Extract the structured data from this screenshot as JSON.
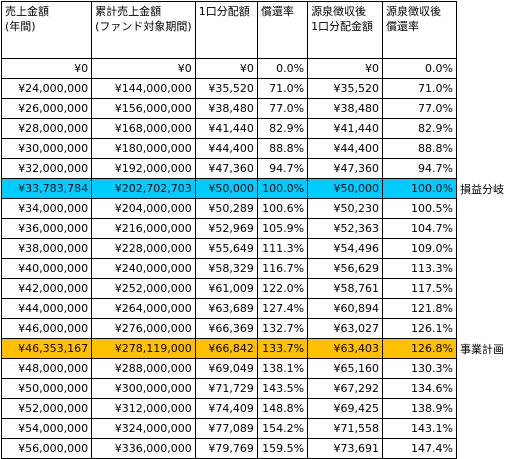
{
  "table": {
    "header": [
      [
        "売上金額",
        "(年間)"
      ],
      [
        "累計売上金額",
        "(ファンド対象期間)"
      ],
      [
        "1口分配額"
      ],
      [
        "償還率"
      ],
      [
        "源泉徴収後",
        "1口分配金額"
      ],
      [
        "源泉徴収後",
        "償還率"
      ]
    ],
    "rows": [
      {
        "cells": [
          "¥0",
          "¥0",
          "¥0",
          "0.0%",
          "¥0",
          "0.0%"
        ]
      },
      {
        "cells": [
          "¥24,000,000",
          "¥144,000,000",
          "¥35,520",
          "71.0%",
          "¥35,520",
          "71.0%"
        ]
      },
      {
        "cells": [
          "¥26,000,000",
          "¥156,000,000",
          "¥38,480",
          "77.0%",
          "¥38,480",
          "77.0%"
        ]
      },
      {
        "cells": [
          "¥28,000,000",
          "¥168,000,000",
          "¥41,440",
          "82.9%",
          "¥41,440",
          "82.9%"
        ]
      },
      {
        "cells": [
          "¥30,000,000",
          "¥180,000,000",
          "¥44,400",
          "88.8%",
          "¥44,400",
          "88.8%"
        ]
      },
      {
        "cells": [
          "¥32,000,000",
          "¥192,000,000",
          "¥47,360",
          "94.7%",
          "¥47,360",
          "94.7%"
        ]
      },
      {
        "cells": [
          "¥33,783,784",
          "¥202,702,703",
          "¥50,000",
          "100.0%",
          "¥50,000",
          "100.0%"
        ],
        "note": "損益分岐",
        "color": "#00ccff"
      },
      {
        "cells": [
          "¥34,000,000",
          "¥204,000,000",
          "¥50,289",
          "100.6%",
          "¥50,230",
          "100.5%"
        ]
      },
      {
        "cells": [
          "¥36,000,000",
          "¥216,000,000",
          "¥52,969",
          "105.9%",
          "¥52,363",
          "104.7%"
        ]
      },
      {
        "cells": [
          "¥38,000,000",
          "¥228,000,000",
          "¥55,649",
          "111.3%",
          "¥54,496",
          "109.0%"
        ]
      },
      {
        "cells": [
          "¥40,000,000",
          "¥240,000,000",
          "¥58,329",
          "116.7%",
          "¥56,629",
          "113.3%"
        ]
      },
      {
        "cells": [
          "¥42,000,000",
          "¥252,000,000",
          "¥61,009",
          "122.0%",
          "¥58,761",
          "117.5%"
        ]
      },
      {
        "cells": [
          "¥44,000,000",
          "¥264,000,000",
          "¥63,689",
          "127.4%",
          "¥60,894",
          "121.8%"
        ]
      },
      {
        "cells": [
          "¥46,000,000",
          "¥276,000,000",
          "¥66,369",
          "132.7%",
          "¥63,027",
          "126.1%"
        ]
      },
      {
        "cells": [
          "¥46,353,167",
          "¥278,119,000",
          "¥66,842",
          "133.7%",
          "¥63,403",
          "126.8%"
        ],
        "note": "事業計画",
        "color": "#ffc000"
      },
      {
        "cells": [
          "¥48,000,000",
          "¥288,000,000",
          "¥69,049",
          "138.1%",
          "¥65,160",
          "130.3%"
        ]
      },
      {
        "cells": [
          "¥50,000,000",
          "¥300,000,000",
          "¥71,729",
          "143.5%",
          "¥67,292",
          "134.6%"
        ]
      },
      {
        "cells": [
          "¥52,000,000",
          "¥312,000,000",
          "¥74,409",
          "148.8%",
          "¥69,425",
          "138.9%"
        ]
      },
      {
        "cells": [
          "¥54,000,000",
          "¥324,000,000",
          "¥77,089",
          "154.2%",
          "¥71,558",
          "143.1%"
        ]
      },
      {
        "cells": [
          "¥56,000,000",
          "¥336,000,000",
          "¥79,769",
          "159.5%",
          "¥73,691",
          "147.4%"
        ]
      }
    ]
  }
}
